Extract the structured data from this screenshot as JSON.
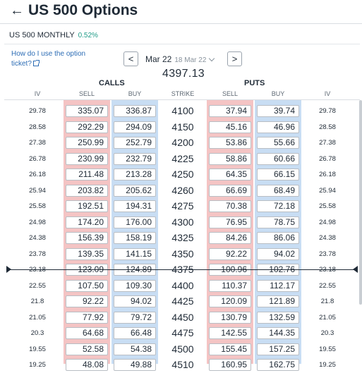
{
  "header": {
    "title": "US 500 Options",
    "back_icon": "arrow-left-icon"
  },
  "market": {
    "name": "US 500 MONTHLY",
    "change": "0.52%"
  },
  "help": {
    "text": "How do I use the option ticket?",
    "icon": "external-link-icon"
  },
  "expiry": {
    "selected": "Mar 22",
    "sub": "18 Mar 22",
    "prev_label": "<",
    "next_label": ">"
  },
  "underlying_price": "4397.13",
  "groups": {
    "calls": "CALLS",
    "puts": "PUTS"
  },
  "columns": {
    "iv_left": "IV",
    "call_sell": "SELL",
    "call_buy": "BUY",
    "strike": "STRIKE",
    "put_sell": "SELL",
    "put_buy": "BUY",
    "iv_right": "IV"
  },
  "colors": {
    "sell_band": "#f4c4c4",
    "buy_band": "#c8ddf3",
    "positive": "#1f9b87",
    "link": "#2d6db5"
  },
  "rows": [
    {
      "iv_call": "29.78",
      "call_sell": "335.07",
      "call_buy": "336.87",
      "strike": "4100",
      "put_sell": "37.94",
      "put_buy": "39.74",
      "iv_put": "29.78"
    },
    {
      "iv_call": "28.58",
      "call_sell": "292.29",
      "call_buy": "294.09",
      "strike": "4150",
      "put_sell": "45.16",
      "put_buy": "46.96",
      "iv_put": "28.58"
    },
    {
      "iv_call": "27.38",
      "call_sell": "250.99",
      "call_buy": "252.79",
      "strike": "4200",
      "put_sell": "53.86",
      "put_buy": "55.66",
      "iv_put": "27.38"
    },
    {
      "iv_call": "26.78",
      "call_sell": "230.99",
      "call_buy": "232.79",
      "strike": "4225",
      "put_sell": "58.86",
      "put_buy": "60.66",
      "iv_put": "26.78"
    },
    {
      "iv_call": "26.18",
      "call_sell": "211.48",
      "call_buy": "213.28",
      "strike": "4250",
      "put_sell": "64.35",
      "put_buy": "66.15",
      "iv_put": "26.18"
    },
    {
      "iv_call": "25.94",
      "call_sell": "203.82",
      "call_buy": "205.62",
      "strike": "4260",
      "put_sell": "66.69",
      "put_buy": "68.49",
      "iv_put": "25.94"
    },
    {
      "iv_call": "25.58",
      "call_sell": "192.51",
      "call_buy": "194.31",
      "strike": "4275",
      "put_sell": "70.38",
      "put_buy": "72.18",
      "iv_put": "25.58"
    },
    {
      "iv_call": "24.98",
      "call_sell": "174.20",
      "call_buy": "176.00",
      "strike": "4300",
      "put_sell": "76.95",
      "put_buy": "78.75",
      "iv_put": "24.98"
    },
    {
      "iv_call": "24.38",
      "call_sell": "156.39",
      "call_buy": "158.19",
      "strike": "4325",
      "put_sell": "84.26",
      "put_buy": "86.06",
      "iv_put": "24.38"
    },
    {
      "iv_call": "23.78",
      "call_sell": "139.35",
      "call_buy": "141.15",
      "strike": "4350",
      "put_sell": "92.22",
      "put_buy": "94.02",
      "iv_put": "23.78"
    },
    {
      "iv_call": "23.18",
      "call_sell": "123.09",
      "call_buy": "124.89",
      "strike": "4375",
      "put_sell": "100.96",
      "put_buy": "102.76",
      "iv_put": "23.18"
    },
    {
      "iv_call": "22.55",
      "call_sell": "107.50",
      "call_buy": "109.30",
      "strike": "4400",
      "put_sell": "110.37",
      "put_buy": "112.17",
      "iv_put": "22.55"
    },
    {
      "iv_call": "21.8",
      "call_sell": "92.22",
      "call_buy": "94.02",
      "strike": "4425",
      "put_sell": "120.09",
      "put_buy": "121.89",
      "iv_put": "21.8"
    },
    {
      "iv_call": "21.05",
      "call_sell": "77.92",
      "call_buy": "79.72",
      "strike": "4450",
      "put_sell": "130.79",
      "put_buy": "132.59",
      "iv_put": "21.05"
    },
    {
      "iv_call": "20.3",
      "call_sell": "64.68",
      "call_buy": "66.48",
      "strike": "4475",
      "put_sell": "142.55",
      "put_buy": "144.35",
      "iv_put": "20.3"
    },
    {
      "iv_call": "19.55",
      "call_sell": "52.58",
      "call_buy": "54.38",
      "strike": "4500",
      "put_sell": "155.45",
      "put_buy": "157.25",
      "iv_put": "19.55"
    },
    {
      "iv_call": "19.25",
      "call_sell": "48.08",
      "call_buy": "49.88",
      "strike": "4510",
      "put_sell": "160.95",
      "put_buy": "162.75",
      "iv_put": "19.25"
    }
  ]
}
